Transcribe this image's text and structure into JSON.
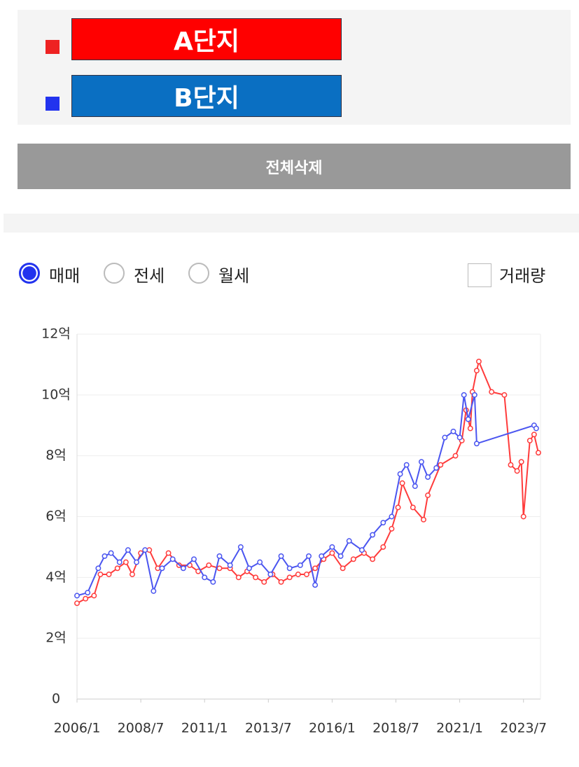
{
  "complexes": [
    {
      "name": "A단지",
      "color": "#ff0000",
      "marker": "#ee2222"
    },
    {
      "name": "B단지",
      "color": "#0a6fc2",
      "marker": "#2233ee"
    }
  ],
  "delete_button": "전체삭제",
  "radio_options": [
    "매매",
    "전세",
    "월세"
  ],
  "selected_option": 0,
  "checkbox_label": "거래량",
  "chart_data": {
    "type": "line",
    "xlim": [
      "2006/1",
      "2024/3"
    ],
    "xticks": [
      "2006/1",
      "2008/7",
      "2011/1",
      "2013/7",
      "2016/1",
      "2018/7",
      "2021/1",
      "2023/7"
    ],
    "ylim": [
      0,
      12
    ],
    "yticks": [
      0,
      {
        "value": 2,
        "label": "2억"
      },
      {
        "value": 4,
        "label": "4억"
      },
      {
        "value": 6,
        "label": "6억"
      },
      {
        "value": 8,
        "label": "8억"
      },
      {
        "value": 10,
        "label": "10억"
      },
      {
        "value": 12,
        "label": "12억"
      }
    ],
    "grid": true,
    "series": [
      {
        "color": "#ff3b3b",
        "x": [
          "2006/1",
          "2006/5",
          "2006/9",
          "2006/12",
          "2007/4",
          "2007/8",
          "2007/12",
          "2008/3",
          "2008/7",
          "2008/11",
          "2009/3",
          "2009/8",
          "2010/1",
          "2010/6",
          "2010/10",
          "2011/3",
          "2011/8",
          "2012/1",
          "2012/5",
          "2012/9",
          "2013/1",
          "2013/5",
          "2013/9",
          "2014/1",
          "2014/5",
          "2014/9",
          "2015/1",
          "2015/5",
          "2015/9",
          "2016/1",
          "2016/6",
          "2016/11",
          "2017/4",
          "2017/8",
          "2018/1",
          "2018/5",
          "2018/8",
          "2018/10",
          "2019/3",
          "2019/8",
          "2019/10",
          "2020/4",
          "2020/11",
          "2021/2",
          "2021/4",
          "2021/6",
          "2021/7",
          "2021/9",
          "2021/10",
          "2022/4",
          "2022/10",
          "2023/1",
          "2023/4",
          "2023/6",
          "2023/7",
          "2023/10",
          "2023/12",
          "2024/2"
        ],
        "values": [
          3.15,
          3.3,
          3.4,
          4.1,
          4.1,
          4.3,
          4.5,
          4.1,
          4.8,
          4.9,
          4.3,
          4.8,
          4.4,
          4.4,
          4.2,
          4.4,
          4.3,
          4.3,
          4.0,
          4.2,
          4.0,
          3.85,
          4.1,
          3.85,
          4.0,
          4.1,
          4.1,
          4.3,
          4.6,
          4.8,
          4.3,
          4.6,
          4.8,
          4.6,
          5.0,
          5.6,
          6.3,
          7.1,
          6.3,
          5.9,
          6.7,
          7.7,
          8.0,
          8.5,
          9.5,
          8.9,
          10.1,
          10.8,
          11.1,
          10.1,
          10.0,
          7.7,
          7.5,
          7.8,
          6.0,
          8.5,
          8.7,
          8.1
        ]
      },
      {
        "color": "#4a55f0",
        "x": [
          "2006/1",
          "2006/6",
          "2006/11",
          "2007/2",
          "2007/5",
          "2007/9",
          "2008/1",
          "2008/5",
          "2008/9",
          "2009/1",
          "2009/5",
          "2009/10",
          "2010/3",
          "2010/8",
          "2011/1",
          "2011/5",
          "2011/8",
          "2012/1",
          "2012/6",
          "2012/10",
          "2013/3",
          "2013/8",
          "2014/1",
          "2014/5",
          "2014/10",
          "2015/2",
          "2015/5",
          "2015/8",
          "2016/1",
          "2016/5",
          "2016/9",
          "2017/3",
          "2017/8",
          "2018/1",
          "2018/5",
          "2018/9",
          "2018/12",
          "2019/4",
          "2019/7",
          "2019/10",
          "2020/2",
          "2020/6",
          "2020/10",
          "2021/1",
          "2021/3",
          "2021/5",
          "2021/8",
          "2021/9",
          "2023/12",
          "2024/1"
        ],
        "values": [
          3.4,
          3.5,
          4.3,
          4.7,
          4.8,
          4.5,
          4.9,
          4.5,
          4.9,
          3.55,
          4.3,
          4.6,
          4.3,
          4.6,
          4.0,
          3.85,
          4.7,
          4.4,
          5.0,
          4.3,
          4.5,
          4.1,
          4.7,
          4.3,
          4.4,
          4.7,
          3.75,
          4.7,
          5.0,
          4.7,
          5.2,
          4.9,
          5.4,
          5.8,
          6.0,
          7.4,
          7.7,
          7.0,
          7.8,
          7.3,
          7.6,
          8.6,
          8.8,
          8.6,
          10.0,
          9.2,
          10.0,
          8.4,
          9.0,
          8.9
        ]
      }
    ]
  }
}
